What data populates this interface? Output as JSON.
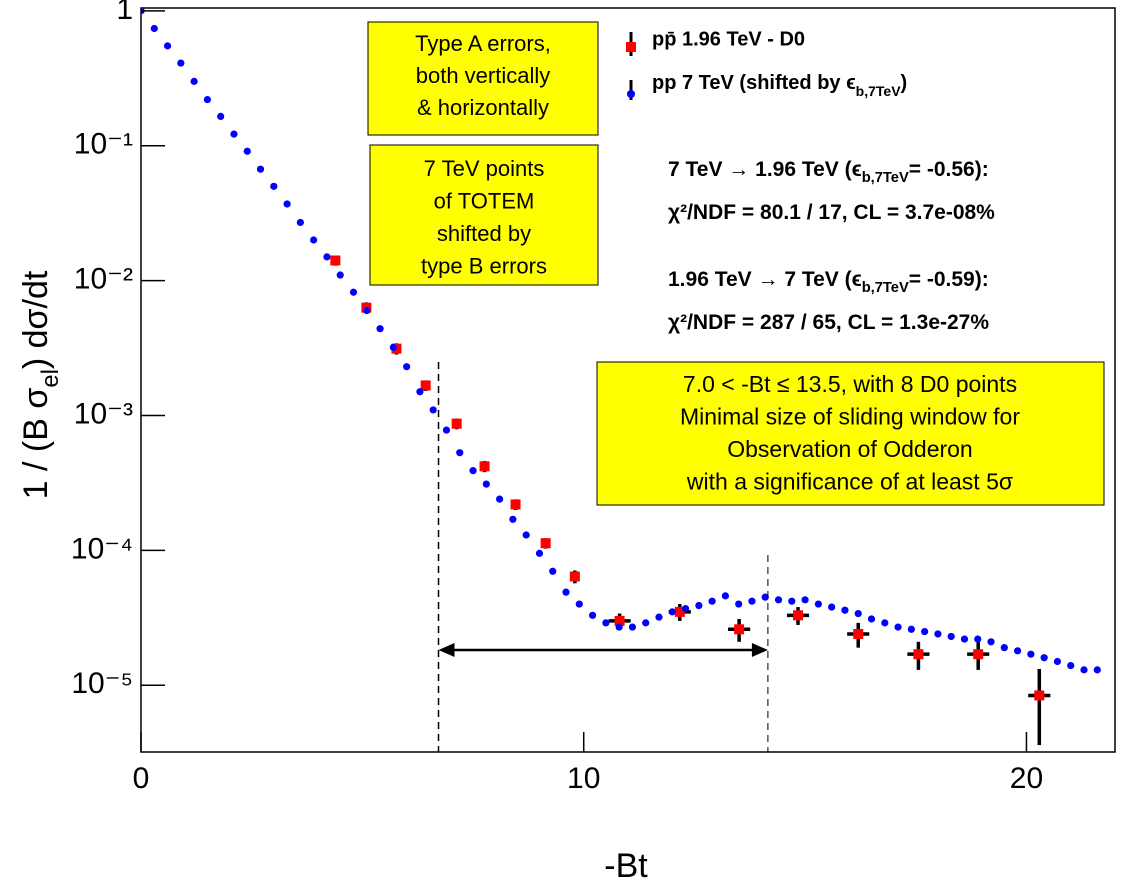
{
  "chart_data": {
    "type": "scatter",
    "x_label": "-Bt",
    "y_label": [
      "1 / (B σ",
      "el",
      ")  dσ/dt"
    ],
    "log_y": true,
    "xlim": [
      0,
      22
    ],
    "ylim": [
      3.2e-06,
      1.05
    ],
    "xticks": [
      0,
      10,
      20
    ],
    "yticks": [
      {
        "value": 1,
        "label": "1"
      },
      {
        "value": 0.1,
        "label": "10⁻¹"
      },
      {
        "value": 0.01,
        "label": "10⁻²"
      },
      {
        "value": 0.001,
        "label": "10⁻³"
      },
      {
        "value": 0.0001,
        "label": "10⁻⁴"
      },
      {
        "value": 1e-05,
        "label": "10⁻⁵"
      }
    ],
    "series": [
      {
        "name": "pp̄ 1.96 TeV - D0",
        "color": "#ff0000",
        "marker": "square",
        "x": [
          4.39,
          5.09,
          5.77,
          6.43,
          7.13,
          7.76,
          8.46,
          9.14,
          9.8,
          10.81,
          12.17,
          13.51,
          14.84,
          16.2,
          17.56,
          18.91,
          20.29
        ],
        "values": [
          0.0141,
          0.0063,
          0.00313,
          0.00167,
          0.00087,
          0.00042,
          0.000219,
          0.000113,
          6.4e-05,
          3e-05,
          3.5e-05,
          2.6e-05,
          3.3e-05,
          2.4e-05,
          1.7e-05,
          1.7e-05,
          8.4e-06
        ],
        "yerr": [
          0.0012,
          0.0006,
          0.0003,
          0.00015,
          8e-05,
          4e-05,
          2e-05,
          1e-05,
          7e-06,
          4e-06,
          5e-06,
          5e-06,
          5e-06,
          5e-06,
          4e-06,
          4e-06,
          4.8e-06
        ],
        "xerr": [
          0.1,
          0.1,
          0.1,
          0.1,
          0.1,
          0.1,
          0.1,
          0.1,
          0.1,
          0.25,
          0.25,
          0.25,
          0.25,
          0.25,
          0.25,
          0.25,
          0.25
        ]
      },
      {
        "name": [
          "pp 7 TeV  (shifted by ϵ",
          "b,7TeV",
          ")"
        ],
        "color": "#0000ff",
        "marker": "circle",
        "x": [
          0,
          0.3,
          0.6,
          0.9,
          1.2,
          1.5,
          1.8,
          2.1,
          2.4,
          2.7,
          3.0,
          3.3,
          3.6,
          3.9,
          4.2,
          4.5,
          4.8,
          5.1,
          5.4,
          5.7,
          6.0,
          6.3,
          6.6,
          6.9,
          7.2,
          7.5,
          7.8,
          8.1,
          8.4,
          8.7,
          9.0,
          9.3,
          9.6,
          9.9,
          10.2,
          10.5,
          10.8,
          11.1,
          11.4,
          11.7,
          12.0,
          12.3,
          12.6,
          12.9,
          13.2,
          13.5,
          13.8,
          14.1,
          14.4,
          14.7,
          15.0,
          15.3,
          15.6,
          15.9,
          16.2,
          16.5,
          16.8,
          17.1,
          17.4,
          17.7,
          18.0,
          18.3,
          18.6,
          18.9,
          19.2,
          19.5,
          19.8,
          20.1,
          20.4,
          20.7,
          21.0,
          21.3,
          21.6
        ],
        "values": [
          1.0,
          0.74,
          0.55,
          0.41,
          0.3,
          0.22,
          0.165,
          0.122,
          0.091,
          0.067,
          0.05,
          0.037,
          0.027,
          0.02,
          0.015,
          0.011,
          0.0082,
          0.006,
          0.0044,
          0.0032,
          0.0023,
          0.0015,
          0.0011,
          0.00078,
          0.00053,
          0.00039,
          0.00031,
          0.00024,
          0.00017,
          0.00013,
          9.5e-05,
          7e-05,
          4.9e-05,
          4e-05,
          3.3e-05,
          2.9e-05,
          2.7e-05,
          2.7e-05,
          2.9e-05,
          3.2e-05,
          3.5e-05,
          3.7e-05,
          3.9e-05,
          4.2e-05,
          4.6e-05,
          4e-05,
          4.2e-05,
          4.5e-05,
          4.3e-05,
          4.2e-05,
          4.3e-05,
          4e-05,
          3.8e-05,
          3.6e-05,
          3.4e-05,
          3.1e-05,
          2.9e-05,
          2.7e-05,
          2.6e-05,
          2.5e-05,
          2.4e-05,
          2.3e-05,
          2.2e-05,
          2.2e-05,
          2.1e-05,
          1.9e-05,
          1.8e-05,
          1.7e-05,
          1.6e-05,
          1.5e-05,
          1.4e-05,
          1.3e-05,
          1.3e-05
        ]
      }
    ],
    "window_lines": [
      6.72,
      14.16
    ],
    "boxes": [
      [
        "Type A errors,",
        "both vertically",
        "& horizontally"
      ],
      [
        "7 TeV points",
        "of TOTEM",
        "shifted by",
        "type B errors"
      ],
      [
        "7.0 < -Bt ≤ 13.5, with 8 D0 points",
        "Minimal size of sliding window for",
        "Observation of Odderon",
        "with a significance of at least  5σ"
      ]
    ],
    "stats": [
      [
        "7 TeV → 1.96 TeV (ϵ",
        "b,7TeV",
        "= -0.56):"
      ],
      [
        "χ²/NDF = 80.1 / 17,  CL = 3.7e-08%"
      ],
      [
        "1.96 TeV → 7 TeV  (ϵ",
        "b,7TeV",
        "= -0.59):"
      ],
      [
        "χ²/NDF = 287 / 65,  CL = 1.3e-27%"
      ]
    ]
  }
}
